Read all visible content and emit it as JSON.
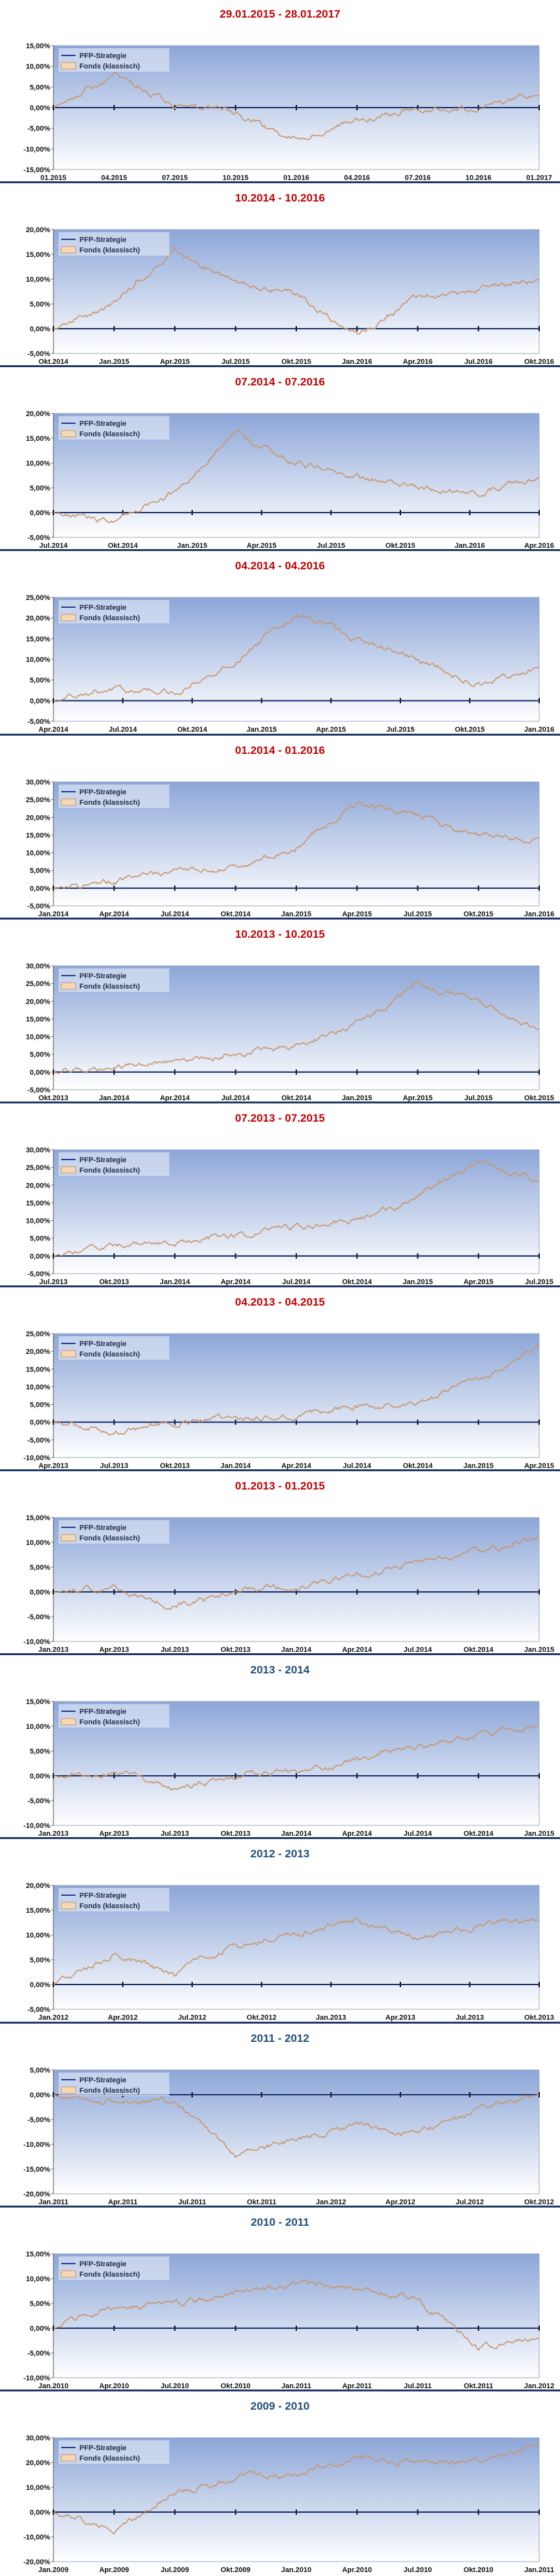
{
  "colors": {
    "title_red": "#c00000",
    "title_blue": "#1f4e79",
    "pfp_line": "#1f3b8c",
    "fonds_line": "#c8946a",
    "plot_top": "#8ca6d8",
    "plot_bottom": "#ffffff",
    "zero_line": "#000000"
  },
  "legend": [
    "PFP-Strategie",
    "Fonds (klassisch)"
  ],
  "chart_data": [
    {
      "type": "line",
      "title": "29.01.2015 - 28.01.2017",
      "title_color": "red",
      "yticks": [
        "15,00%",
        "10,00%",
        "5,00%",
        "0,00%",
        "-5,00%",
        "-10,00%",
        "-15,00%"
      ],
      "ylim": [
        -15,
        15
      ],
      "xticks": [
        "01.2015",
        "04.2015",
        "07.2015",
        "10.2015",
        "01.2016",
        "04.2016",
        "07.2016",
        "10.2016",
        "01.2017"
      ],
      "series": [
        {
          "name": "PFP-Strategie",
          "values": [
            0,
            0,
            0,
            0,
            0,
            0,
            0,
            0,
            0
          ]
        },
        {
          "name": "Fonds (klassisch)",
          "values": [
            0,
            8,
            1,
            -1,
            -8,
            -3,
            0,
            0,
            3
          ]
        }
      ]
    },
    {
      "type": "line",
      "title": "10.2014 - 10.2016",
      "title_color": "red",
      "yticks": [
        "20,00%",
        "15,00%",
        "10,00%",
        "5,00%",
        "0,00%",
        "-5,00%"
      ],
      "ylim": [
        -5,
        20
      ],
      "xticks": [
        "Okt.2014",
        "Jan.2015",
        "Apr.2015",
        "Jul.2015",
        "Okt.2015",
        "Jan.2016",
        "Apr.2016",
        "Jul.2016",
        "Okt.2016"
      ],
      "series": [
        {
          "name": "PFP-Strategie",
          "values": [
            0,
            0,
            0,
            0,
            0,
            0,
            0,
            0,
            0
          ]
        },
        {
          "name": "Fonds (klassisch)",
          "values": [
            0,
            5,
            16,
            9,
            7,
            -1,
            6,
            8,
            10
          ]
        }
      ]
    },
    {
      "type": "line",
      "title": "07.2014 - 07.2016",
      "title_color": "red",
      "yticks": [
        "20,00%",
        "15,00%",
        "10,00%",
        "5,00%",
        "0,00%",
        "-5,00%"
      ],
      "ylim": [
        -5,
        20
      ],
      "xticks": [
        "Jul.2014",
        "Okt.2014",
        "Jan.2015",
        "Apr.2015",
        "Jul.2015",
        "Okt.2015",
        "Jan.2016",
        "Apr.2016"
      ],
      "series": [
        {
          "name": "PFP-Strategie",
          "values": [
            0,
            0,
            0,
            0,
            0,
            0,
            0,
            0,
            0
          ]
        },
        {
          "name": "Fonds (klassisch)",
          "values": [
            0,
            -2,
            4,
            16,
            10,
            7,
            5,
            4,
            7
          ]
        }
      ]
    },
    {
      "type": "line",
      "title": "04.2014 - 04.2016",
      "title_color": "red",
      "yticks": [
        "25,00%",
        "20,00%",
        "15,00%",
        "10,00%",
        "5,00%",
        "0,00%",
        "-5,00%"
      ],
      "ylim": [
        -5,
        25
      ],
      "xticks": [
        "Apr.2014",
        "Jul.2014",
        "Okt.2014",
        "Jan.2015",
        "Apr.2015",
        "Jul.2015",
        "Okt.2015",
        "Jan.2016"
      ],
      "series": [
        {
          "name": "PFP-Strategie",
          "values": [
            0,
            0,
            0,
            0,
            0,
            0,
            0,
            0,
            0
          ]
        },
        {
          "name": "Fonds (klassisch)",
          "values": [
            0,
            3,
            2,
            10,
            21,
            15,
            10,
            4,
            8
          ]
        }
      ]
    },
    {
      "type": "line",
      "title": "01.2014 - 01.2016",
      "title_color": "red",
      "yticks": [
        "30,00%",
        "25,00%",
        "20,00%",
        "15,00%",
        "10,00%",
        "5,00%",
        "0,00%",
        "-5,00%"
      ],
      "ylim": [
        -5,
        30
      ],
      "xticks": [
        "Jan.2014",
        "Apr.2014",
        "Jul.2014",
        "Okt.2014",
        "Jan.2015",
        "Apr.2015",
        "Jul.2015",
        "Okt.2015",
        "Jan.2016"
      ],
      "series": [
        {
          "name": "PFP-Strategie",
          "values": [
            0,
            0,
            0,
            0,
            0,
            0,
            0,
            0,
            0
          ]
        },
        {
          "name": "Fonds (klassisch)",
          "values": [
            0,
            2,
            5,
            6,
            12,
            24,
            20,
            15,
            14
          ]
        }
      ]
    },
    {
      "type": "line",
      "title": "10.2013 - 10.2015",
      "title_color": "red",
      "yticks": [
        "30,00%",
        "25,00%",
        "20,00%",
        "15,00%",
        "10,00%",
        "5,00%",
        "0,00%",
        "-5,00%"
      ],
      "ylim": [
        -5,
        30
      ],
      "xticks": [
        "Okt.2013",
        "Jan.2014",
        "Apr.2014",
        "Jul.2014",
        "Okt.2014",
        "Jan.2015",
        "Apr.2015",
        "Jul.2015",
        "Okt.2015"
      ],
      "series": [
        {
          "name": "PFP-Strategie",
          "values": [
            0,
            0,
            0,
            0,
            0,
            0,
            0,
            0,
            0
          ]
        },
        {
          "name": "Fonds (klassisch)",
          "values": [
            0,
            1,
            3,
            5,
            7,
            14,
            24,
            20,
            12
          ]
        }
      ]
    },
    {
      "type": "line",
      "title": "07.2013 - 07.2015",
      "title_color": "red",
      "yticks": [
        "30,00%",
        "25,00%",
        "20,00%",
        "15,00%",
        "10,00%",
        "5,00%",
        "0,00%",
        "-5,00%"
      ],
      "ylim": [
        -5,
        30
      ],
      "xticks": [
        "Jul.2013",
        "Okt.2013",
        "Jan.2014",
        "Apr.2014",
        "Jul.2014",
        "Okt.2014",
        "Jan.2015",
        "Apr.2015",
        "Jul.2015"
      ],
      "series": [
        {
          "name": "PFP-Strategie",
          "values": [
            0,
            0,
            0,
            0,
            0,
            0,
            0,
            0,
            0
          ]
        },
        {
          "name": "Fonds (klassisch)",
          "values": [
            0,
            3,
            4,
            6,
            8,
            10,
            17,
            26,
            21
          ]
        }
      ]
    },
    {
      "type": "line",
      "title": "04.2013 - 04.2015",
      "title_color": "red",
      "yticks": [
        "25,00%",
        "20,00%",
        "15,00%",
        "10,00%",
        "5,00%",
        "0,00%",
        "-5,00%",
        "-10,00%"
      ],
      "ylim": [
        -10,
        25
      ],
      "xticks": [
        "Apr.2013",
        "Jul.2013",
        "Okt.2013",
        "Jan.2014",
        "Apr.2014",
        "Jul.2014",
        "Okt.2014",
        "Jan.2015",
        "Apr.2015"
      ],
      "series": [
        {
          "name": "PFP-Strategie",
          "values": [
            0,
            0,
            0,
            0,
            0,
            0,
            0,
            0,
            0
          ]
        },
        {
          "name": "Fonds (klassisch)",
          "values": [
            0,
            -3,
            0,
            1,
            2,
            4,
            5,
            12,
            22
          ]
        }
      ]
    },
    {
      "type": "line",
      "title": "01.2013 - 01.2015",
      "title_color": "red",
      "yticks": [
        "15,00%",
        "10,00%",
        "5,00%",
        "0,00%",
        "-5,00%",
        "-10,00%"
      ],
      "ylim": [
        -10,
        15
      ],
      "xticks": [
        "Jan.2013",
        "Apr.2013",
        "Jul.2013",
        "Okt.2013",
        "Jan.2014",
        "Apr.2014",
        "Jul.2014",
        "Okt.2014",
        "Jan.2015"
      ],
      "series": [
        {
          "name": "PFP-Strategie",
          "values": [
            0,
            0,
            0,
            0,
            0,
            0,
            0,
            0,
            0
          ]
        },
        {
          "name": "Fonds (klassisch)",
          "values": [
            0,
            1,
            -3,
            0,
            1,
            3,
            6,
            8,
            11
          ]
        }
      ]
    },
    {
      "type": "line",
      "title": "2013 - 2014",
      "title_color": "blue",
      "yticks": [
        "15,00%",
        "10,00%",
        "5,00%",
        "0,00%",
        "-5,00%",
        "-10,00%"
      ],
      "ylim": [
        -10,
        15
      ],
      "xticks": [
        "Jan.2013",
        "Apr.2013",
        "Jul.2013",
        "Okt.2013",
        "Jan.2014",
        "Apr.2014",
        "Jul.2014",
        "Okt.2014",
        "Jan.2015"
      ],
      "series": [
        {
          "name": "PFP-Strategie",
          "values": [
            0,
            0,
            0,
            0,
            0,
            0,
            0,
            0,
            0
          ]
        },
        {
          "name": "Fonds (klassisch)",
          "values": [
            0,
            1,
            -3,
            0,
            1,
            3,
            6,
            8,
            10
          ]
        }
      ]
    },
    {
      "type": "line",
      "title": "2012 - 2013",
      "title_color": "blue",
      "yticks": [
        "20,00%",
        "15,00%",
        "10,00%",
        "5,00%",
        "0,00%",
        "-5,00%"
      ],
      "ylim": [
        -5,
        20
      ],
      "xticks": [
        "Jan.2012",
        "Apr.2012",
        "Jul.2012",
        "Okt.2012",
        "Jan.2013",
        "Apr.2013",
        "Jul.2013",
        "Okt.2013"
      ],
      "series": [
        {
          "name": "PFP-Strategie",
          "values": [
            0,
            0,
            0,
            0,
            0,
            0,
            0,
            0,
            0
          ]
        },
        {
          "name": "Fonds (klassisch)",
          "values": [
            0,
            6,
            2,
            8,
            10,
            13,
            9,
            12,
            13
          ]
        }
      ]
    },
    {
      "type": "line",
      "title": "2011 - 2012",
      "title_color": "blue",
      "yticks": [
        "5,00%",
        "0,00%",
        "-5,00%",
        "-10,00%",
        "-15,00%",
        "-20,00%"
      ],
      "ylim": [
        -20,
        5
      ],
      "xticks": [
        "Jan.2011",
        "Apr.2011",
        "Jul.2011",
        "Okt.2011",
        "Jan.2012",
        "Apr.2012",
        "Jul.2012",
        "Okt.2012"
      ],
      "series": [
        {
          "name": "PFP-Strategie",
          "values": [
            0,
            0,
            0,
            0,
            0,
            0,
            0,
            0,
            0
          ]
        },
        {
          "name": "Fonds (klassisch)",
          "values": [
            0,
            -1,
            -2,
            -12,
            -9,
            -6,
            -8,
            -3,
            0
          ]
        }
      ]
    },
    {
      "type": "line",
      "title": "2010 - 2011",
      "title_color": "blue",
      "yticks": [
        "15,00%",
        "10,00%",
        "5,00%",
        "0,00%",
        "-5,00%",
        "-10,00%"
      ],
      "ylim": [
        -10,
        15
      ],
      "xticks": [
        "Jan.2010",
        "Apr.2010",
        "Jul.2010",
        "Okt.2010",
        "Jan.2011",
        "Apr.2011",
        "Jul.2011",
        "Okt.2011",
        "Jan.2012"
      ],
      "series": [
        {
          "name": "PFP-Strategie",
          "values": [
            0,
            0,
            0,
            0,
            0,
            0,
            0,
            0,
            0
          ]
        },
        {
          "name": "Fonds (klassisch)",
          "values": [
            0,
            4,
            5,
            7,
            9,
            8,
            6,
            -4,
            -2
          ]
        }
      ]
    },
    {
      "type": "line",
      "title": "2009 - 2010",
      "title_color": "blue",
      "yticks": [
        "30,00%",
        "20,00%",
        "10,00%",
        "0,00%",
        "-10,00%",
        "-20,00%"
      ],
      "ylim": [
        -20,
        30
      ],
      "xticks": [
        "Jan.2009",
        "Apr.2009",
        "Jul.2009",
        "Okt.2009",
        "Jan.2010",
        "Apr.2010",
        "Jul.2010",
        "Okt.2010",
        "Jan.2011"
      ],
      "series": [
        {
          "name": "PFP-Strategie",
          "values": [
            0,
            0,
            0,
            0,
            0,
            0,
            0,
            0,
            0
          ]
        },
        {
          "name": "Fonds (klassisch)",
          "values": [
            0,
            -8,
            8,
            13,
            16,
            22,
            20,
            21,
            27
          ]
        }
      ]
    }
  ]
}
